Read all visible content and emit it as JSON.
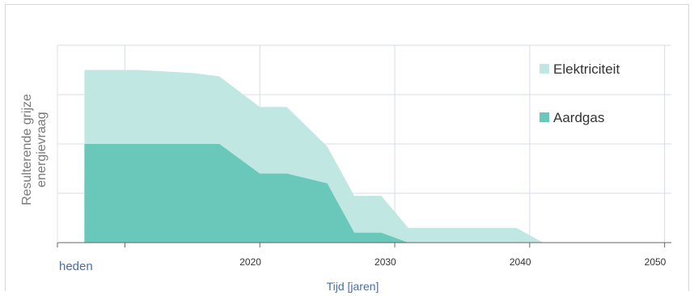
{
  "chart_data": {
    "type": "area",
    "title": "",
    "xlabel": "Tijd [jaren]",
    "ylabel": "Resulterende grijze energievraag",
    "x_tick_labels": [
      {
        "label": "heden",
        "x": 2010
      },
      {
        "label": "2020",
        "x": 2020
      },
      {
        "label": "2030",
        "x": 2030
      },
      {
        "label": "2040",
        "x": 2040
      },
      {
        "label": "2050",
        "x": 2050
      }
    ],
    "xlim": [
      2005,
      2050.5
    ],
    "ylim": [
      0,
      4
    ],
    "stacked": true,
    "grid": true,
    "legend_position": "top-right",
    "series": [
      {
        "name": "Elektriciteit",
        "color": "#c1e7e2",
        "points": [
          {
            "x": 2007,
            "y": 3.5
          },
          {
            "x": 2011,
            "y": 3.5
          },
          {
            "x": 2015,
            "y": 3.44
          },
          {
            "x": 2017,
            "y": 3.37
          },
          {
            "x": 2020,
            "y": 2.75
          },
          {
            "x": 2022,
            "y": 2.75
          },
          {
            "x": 2025,
            "y": 1.95
          },
          {
            "x": 2027,
            "y": 0.95
          },
          {
            "x": 2029,
            "y": 0.95
          },
          {
            "x": 2031,
            "y": 0.3
          },
          {
            "x": 2039,
            "y": 0.3
          },
          {
            "x": 2041,
            "y": 0
          }
        ]
      },
      {
        "name": "Aardgas",
        "color": "#69c8b9",
        "points": [
          {
            "x": 2007,
            "y": 2.0
          },
          {
            "x": 2017,
            "y": 2.0
          },
          {
            "x": 2020,
            "y": 1.4
          },
          {
            "x": 2022,
            "y": 1.4
          },
          {
            "x": 2025,
            "y": 1.2
          },
          {
            "x": 2027,
            "y": 0.2
          },
          {
            "x": 2029,
            "y": 0.2
          },
          {
            "x": 2031,
            "y": 0
          }
        ]
      }
    ]
  }
}
